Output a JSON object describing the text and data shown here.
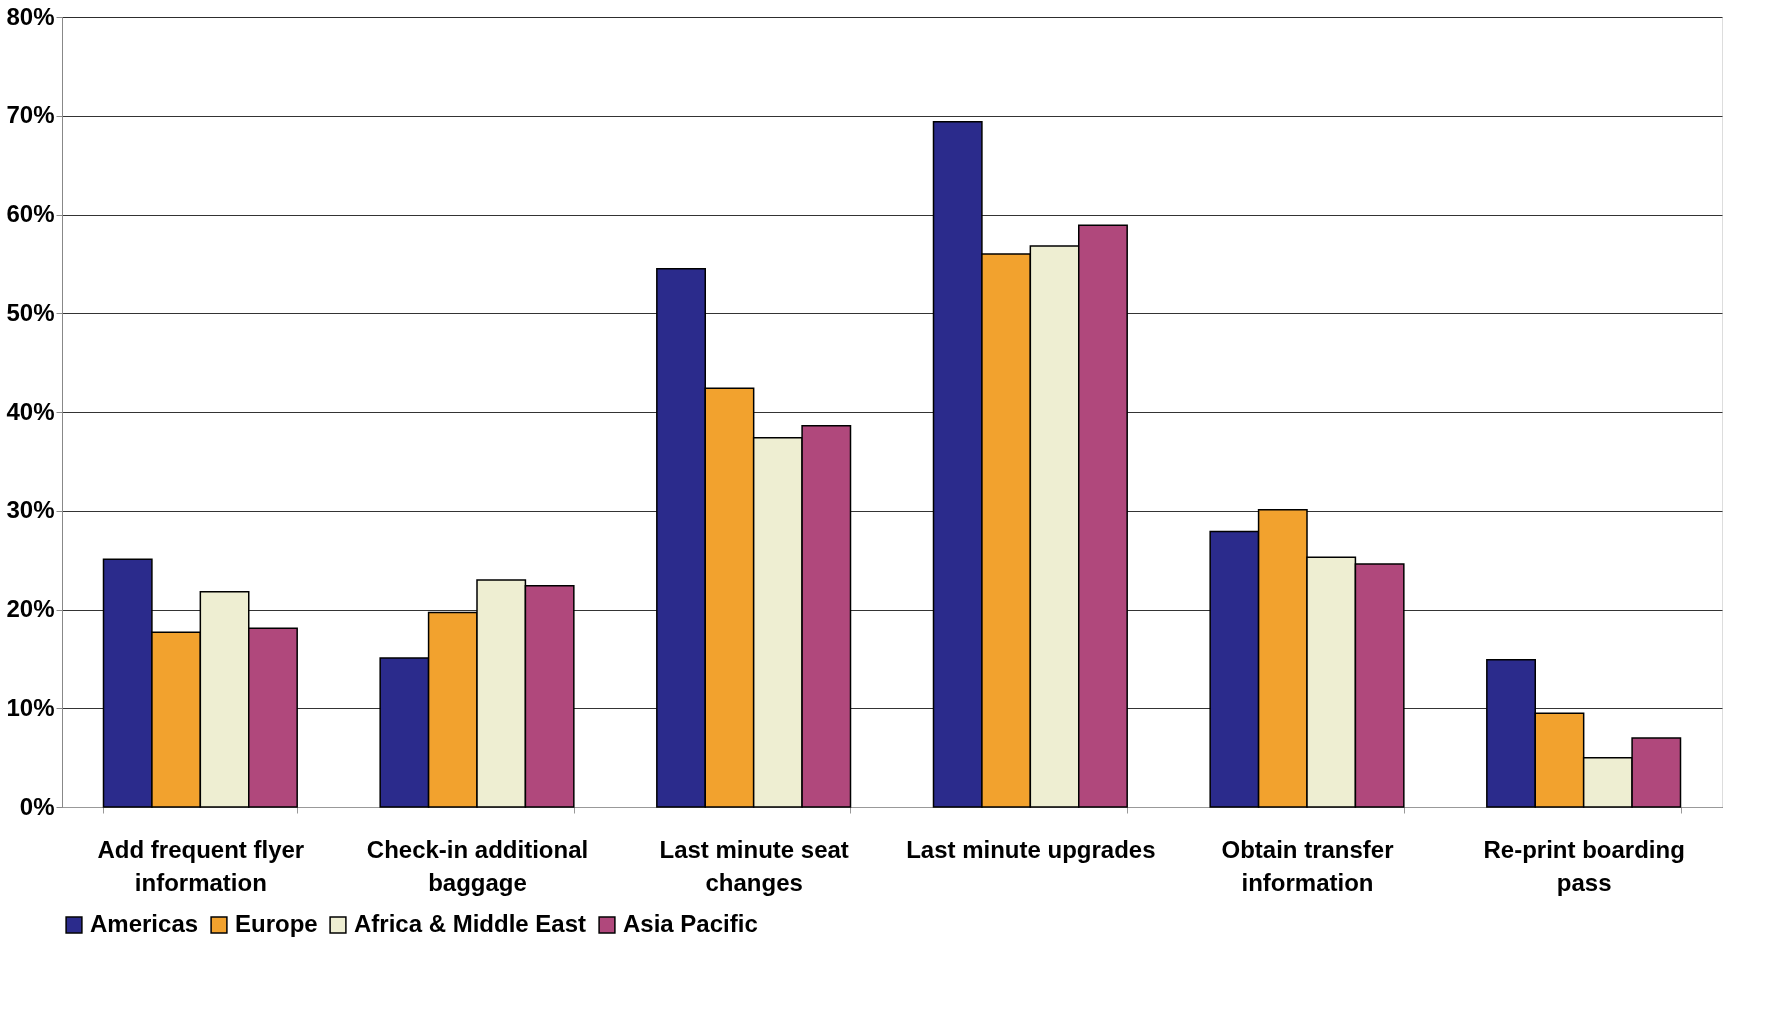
{
  "chart_data": {
    "type": "bar",
    "categories": [
      "Add frequent flyer information",
      "Check-in additional baggage",
      "Last minute seat changes",
      "Last minute upgrades",
      "Obtain transfer information",
      "Re-print boarding pass"
    ],
    "series": [
      {
        "name": "Americas",
        "color": "#2b2b8c",
        "values": [
          25.1,
          15.1,
          54.5,
          69.4,
          27.9,
          14.9
        ]
      },
      {
        "name": "Europe",
        "color": "#f2a22e",
        "values": [
          17.7,
          19.7,
          42.4,
          56.0,
          30.1,
          9.5
        ]
      },
      {
        "name": "Africa & Middle East",
        "color": "#eeeed2",
        "values": [
          21.8,
          23.0,
          37.4,
          56.8,
          25.3,
          5.0
        ]
      },
      {
        "name": "Asia Pacific",
        "color": "#b0487c",
        "values": [
          18.1,
          22.4,
          38.6,
          58.9,
          24.6,
          7.0
        ]
      }
    ],
    "ylim": [
      0,
      80
    ],
    "yticks": [
      {
        "value": 0,
        "label": "0%"
      },
      {
        "value": 10,
        "label": "10%"
      },
      {
        "value": 20,
        "label": "20%"
      },
      {
        "value": 30,
        "label": "30%"
      },
      {
        "value": 40,
        "label": "40%"
      },
      {
        "value": 50,
        "label": "50%"
      },
      {
        "value": 60,
        "label": "60%"
      },
      {
        "value": 70,
        "label": "70%"
      },
      {
        "value": 80,
        "label": "80%"
      }
    ],
    "grid": "y",
    "legend": "bottom"
  }
}
